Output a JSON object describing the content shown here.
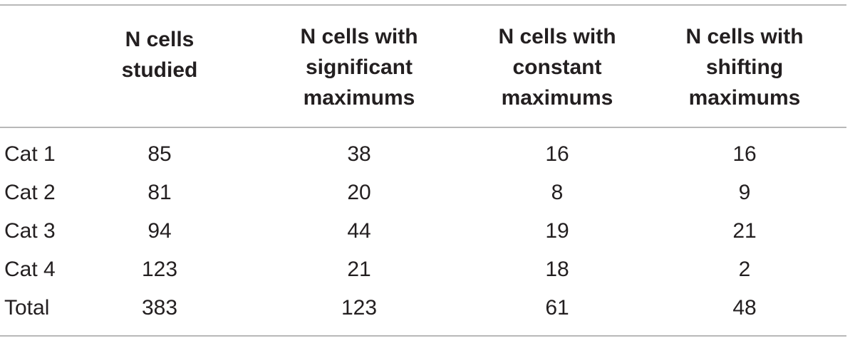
{
  "table": {
    "header": {
      "col0": "",
      "col1": [
        "N cells",
        "studied"
      ],
      "col2": [
        "N cells with",
        "significant",
        "maximums"
      ],
      "col3": [
        "N cells with",
        "constant",
        "maximums"
      ],
      "col4": [
        "N cells with",
        "shifting",
        "maximums"
      ]
    },
    "rows": [
      {
        "label": "Cat 1",
        "studied": "85",
        "significant": "38",
        "constant": "16",
        "shifting": "16"
      },
      {
        "label": "Cat 2",
        "studied": "81",
        "significant": "20",
        "constant": "8",
        "shifting": "9"
      },
      {
        "label": "Cat 3",
        "studied": "94",
        "significant": "44",
        "constant": "19",
        "shifting": "21"
      },
      {
        "label": "Cat 4",
        "studied": "123",
        "significant": "21",
        "constant": "18",
        "shifting": "2"
      },
      {
        "label": "Total",
        "studied": "383",
        "significant": "123",
        "constant": "61",
        "shifting": "48"
      }
    ]
  },
  "colors": {
    "text": "#231f20",
    "rule": "#b8b8b8"
  }
}
